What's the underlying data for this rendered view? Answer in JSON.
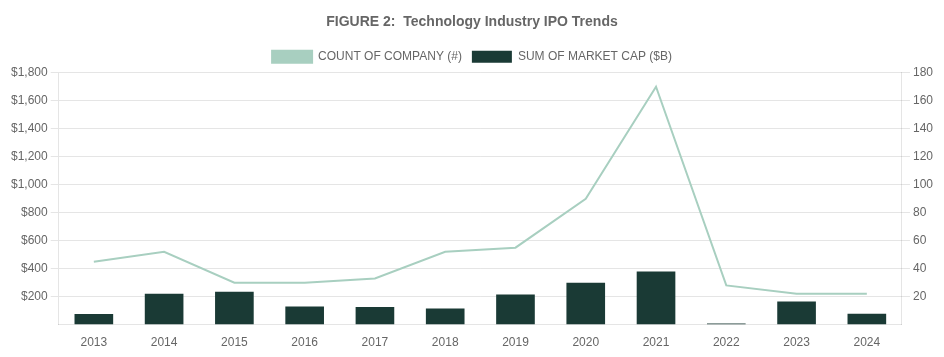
{
  "chart_data": {
    "type": "bar",
    "title": "FIGURE 2:  Technology Industry IPO Trends",
    "categories": [
      "2013",
      "2014",
      "2015",
      "2016",
      "2017",
      "2018",
      "2019",
      "2020",
      "2021",
      "2022",
      "2023",
      "2024"
    ],
    "series": [
      {
        "name": "SUM OF MARKET CAP ($B)",
        "type": "bar",
        "color": "#1a3a35",
        "values": [
          75,
          220,
          235,
          130,
          125,
          115,
          215,
          300,
          380,
          8,
          165,
          78
        ]
      },
      {
        "name": "COUNT OF COMPANY (#)",
        "type": "line",
        "axis": "y2",
        "color": "#a8cfc0",
        "values": [
          45,
          52,
          30,
          30,
          33,
          52,
          55,
          90,
          170,
          28,
          22,
          22
        ]
      }
    ],
    "ylim": [
      0,
      1800
    ],
    "yticks": [
      {
        "value": 200,
        "label": "$200"
      },
      {
        "value": 400,
        "label": "$400"
      },
      {
        "value": 600,
        "label": "$600"
      },
      {
        "value": 800,
        "label": "$800"
      },
      {
        "value": 1000,
        "label": "$1,000"
      },
      {
        "value": 1200,
        "label": "$1,200"
      },
      {
        "value": 1400,
        "label": "$1,400"
      },
      {
        "value": 1600,
        "label": "$1,600"
      },
      {
        "value": 1800,
        "label": "$1,800"
      }
    ],
    "y2lim": [
      0,
      180
    ],
    "y2ticks": [
      20,
      40,
      60,
      80,
      100,
      120,
      140,
      160,
      180
    ],
    "grid": true,
    "legend": "top"
  }
}
